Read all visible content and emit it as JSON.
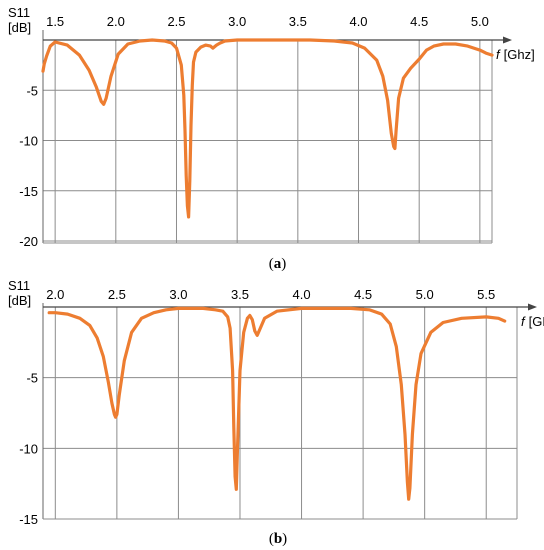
{
  "chart_data": [
    {
      "type": "line",
      "caption": {
        "open": "(",
        "letter": "a",
        "close": ")"
      },
      "ylabel": "S11",
      "ylabel_unit": "[dB]",
      "xlabel_symbol": "f",
      "xlabel_unit": "[Ghz]",
      "xlim": [
        1.4,
        5.1
      ],
      "ylim": [
        -20.2,
        0.6
      ],
      "x_ticks": [
        {
          "v": 1.5,
          "label": "1.5"
        },
        {
          "v": 2.0,
          "label": "2.0"
        },
        {
          "v": 2.5,
          "label": "2.5"
        },
        {
          "v": 3.0,
          "label": "3.0"
        },
        {
          "v": 3.5,
          "label": "3.5"
        },
        {
          "v": 4.0,
          "label": "4.0"
        },
        {
          "v": 4.5,
          "label": "4.5"
        },
        {
          "v": 5.0,
          "label": "5.0"
        }
      ],
      "y_ticks": [
        {
          "v": -5,
          "label": "-5"
        },
        {
          "v": -10,
          "label": "-10"
        },
        {
          "v": -15,
          "label": "-15"
        },
        {
          "v": -20,
          "label": "-20"
        }
      ],
      "grid": true,
      "line_color": "#ED7D31",
      "series": [
        {
          "x": [
            1.4,
            1.41,
            1.43,
            1.46,
            1.5,
            1.6,
            1.7,
            1.78,
            1.84,
            1.88,
            1.9,
            1.92,
            1.96,
            2.02,
            2.1,
            2.2,
            2.3,
            2.4,
            2.46,
            2.5,
            2.54,
            2.56,
            2.57,
            2.58,
            2.59,
            2.6,
            2.61,
            2.62,
            2.63,
            2.64,
            2.66,
            2.7,
            2.74,
            2.78,
            2.8,
            2.83,
            2.86,
            2.9,
            3.0,
            3.2,
            3.4,
            3.6,
            3.8,
            3.95,
            4.05,
            4.15,
            4.2,
            4.24,
            4.27,
            4.29,
            4.3,
            4.31,
            4.33,
            4.37,
            4.43,
            4.5,
            4.56,
            4.62,
            4.7,
            4.8,
            4.9,
            5.0,
            5.05,
            5.1
          ],
          "y": [
            -3.1,
            -2.4,
            -1.6,
            -0.6,
            -0.2,
            -0.5,
            -1.5,
            -3.0,
            -4.7,
            -6.1,
            -6.4,
            -5.8,
            -3.6,
            -1.4,
            -0.4,
            -0.1,
            0.0,
            -0.1,
            -0.3,
            -0.8,
            -2.5,
            -5.5,
            -9.0,
            -13.5,
            -16.5,
            -17.6,
            -14.0,
            -8.5,
            -4.5,
            -2.2,
            -1.2,
            -0.7,
            -0.5,
            -0.6,
            -0.8,
            -0.5,
            -0.3,
            -0.1,
            0.0,
            0.0,
            0.0,
            0.0,
            -0.1,
            -0.3,
            -0.8,
            -2.0,
            -3.6,
            -6.0,
            -9.3,
            -10.6,
            -10.8,
            -9.0,
            -5.8,
            -3.8,
            -2.8,
            -1.9,
            -1.0,
            -0.6,
            -0.4,
            -0.4,
            -0.6,
            -1.0,
            -1.3,
            -1.5
          ]
        }
      ]
    },
    {
      "type": "line",
      "caption": {
        "open": "(",
        "letter": "b",
        "close": ")"
      },
      "ylabel": "S11",
      "ylabel_unit": "[dB]",
      "xlabel_symbol": "f",
      "xlabel_unit": "[GHz]",
      "xlim": [
        1.9,
        5.75
      ],
      "ylim": [
        -15.0,
        0.0
      ],
      "x_ticks": [
        {
          "v": 2.0,
          "label": "2.0"
        },
        {
          "v": 2.5,
          "label": "2.5"
        },
        {
          "v": 3.0,
          "label": "3.0"
        },
        {
          "v": 3.5,
          "label": "3.5"
        },
        {
          "v": 4.0,
          "label": "4.0"
        },
        {
          "v": 4.5,
          "label": "4.5"
        },
        {
          "v": 5.0,
          "label": "5.0"
        },
        {
          "v": 5.5,
          "label": "5.5"
        }
      ],
      "y_ticks": [
        {
          "v": -5,
          "label": "-5"
        },
        {
          "v": -10,
          "label": "-10"
        },
        {
          "v": -15,
          "label": "-15"
        }
      ],
      "grid": true,
      "line_color": "#ED7D31",
      "series": [
        {
          "x": [
            1.95,
            2.0,
            2.1,
            2.2,
            2.28,
            2.34,
            2.39,
            2.43,
            2.46,
            2.48,
            2.49,
            2.5,
            2.52,
            2.56,
            2.62,
            2.7,
            2.8,
            2.9,
            3.0,
            3.1,
            3.2,
            3.3,
            3.36,
            3.4,
            3.42,
            3.44,
            3.45,
            3.46,
            3.47,
            3.48,
            3.5,
            3.53,
            3.56,
            3.58,
            3.6,
            3.62,
            3.64,
            3.66,
            3.7,
            3.8,
            4.0,
            4.2,
            4.4,
            4.55,
            4.65,
            4.72,
            4.77,
            4.81,
            4.84,
            4.86,
            4.87,
            4.88,
            4.9,
            4.93,
            4.97,
            5.05,
            5.15,
            5.3,
            5.5,
            5.6,
            5.65
          ],
          "y": [
            -0.4,
            -0.4,
            -0.5,
            -0.8,
            -1.3,
            -2.2,
            -3.5,
            -5.3,
            -6.8,
            -7.6,
            -7.8,
            -7.6,
            -6.2,
            -3.8,
            -1.8,
            -0.8,
            -0.4,
            -0.2,
            -0.1,
            -0.1,
            -0.1,
            -0.2,
            -0.3,
            -0.7,
            -1.5,
            -4.5,
            -8.5,
            -12.0,
            -12.9,
            -10.0,
            -4.5,
            -1.8,
            -0.8,
            -0.6,
            -0.9,
            -1.7,
            -2.0,
            -1.6,
            -0.8,
            -0.3,
            -0.1,
            -0.1,
            -0.1,
            -0.2,
            -0.5,
            -1.2,
            -2.8,
            -5.5,
            -9.0,
            -12.4,
            -13.6,
            -12.8,
            -9.0,
            -5.5,
            -3.3,
            -1.8,
            -1.1,
            -0.8,
            -0.7,
            -0.8,
            -1.0
          ]
        }
      ]
    }
  ]
}
